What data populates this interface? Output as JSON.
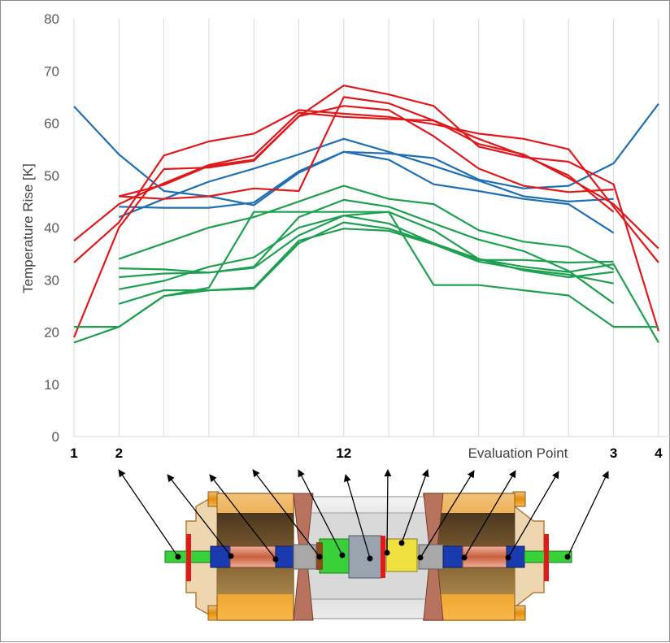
{
  "chart_data": {
    "type": "line",
    "ylabel": "Temperature Rise [K]",
    "xlabel": "Evaluation Point",
    "ylim": [
      0,
      80
    ],
    "y_ticks": [
      0,
      10,
      20,
      30,
      40,
      50,
      60,
      70,
      80
    ],
    "x_count": 15,
    "grid": "vertical",
    "point_labels": [
      {
        "index": 0,
        "label": "1"
      },
      {
        "index": 1,
        "label": "2"
      },
      {
        "index": 6,
        "label": "12"
      },
      {
        "index": 12,
        "label": "3"
      },
      {
        "index": 13,
        "label": "4"
      }
    ],
    "series": [
      {
        "color": "#1f6fb4",
        "values": [
          63.2,
          54,
          47,
          46,
          44.3,
          50.5,
          54.5,
          54.2,
          53.3,
          49.2,
          47.5,
          48,
          52.3,
          63.7
        ]
      },
      {
        "color": "#1f6fb4",
        "values": [
          null,
          44,
          43.8,
          43.8,
          44.8,
          50.8,
          54.5,
          53,
          48.3,
          47,
          45.5,
          44.5,
          39
        ]
      },
      {
        "color": "#1f6fb4",
        "values": [
          null,
          42,
          45.5,
          48.8,
          51.3,
          54,
          57,
          54.5,
          51.8,
          49,
          46,
          45,
          45.5
        ]
      },
      {
        "color": "#e0191c",
        "values": [
          37.5,
          44.5,
          48.5,
          52,
          53.8,
          62,
          61.2,
          60.8,
          60.5,
          56,
          54,
          49.5,
          44.5,
          36
        ]
      },
      {
        "color": "#e0191c",
        "values": [
          33.3,
          41,
          53.8,
          56.5,
          58,
          62.5,
          61.8,
          61.2,
          59.8,
          58,
          57,
          55,
          44,
          33.3
        ]
      },
      {
        "color": "#e0191c",
        "values": [
          19,
          40,
          51.2,
          51.5,
          52.8,
          61.3,
          67.2,
          65.5,
          63.3,
          55.5,
          53.5,
          52.6,
          48.3,
          20.2
        ]
      },
      {
        "color": "#e0191c",
        "values": [
          null,
          46,
          45.5,
          46,
          47.5,
          47,
          65,
          63.8,
          60.5,
          57,
          53.8,
          50,
          43
        ]
      },
      {
        "color": "#e0191c",
        "values": [
          null,
          46,
          48.2,
          51.8,
          53,
          61.3,
          63.3,
          62.5,
          57.5,
          51.3,
          48,
          46.8,
          47.3
        ]
      },
      {
        "color": "#1da050",
        "values": [
          18,
          21,
          26.9,
          28,
          28.3,
          37,
          41,
          39.8,
          37,
          34,
          32.5,
          31.5,
          33,
          18
        ]
      },
      {
        "color": "#1da050",
        "values": [
          21,
          21,
          26.9,
          28.5,
          43,
          43,
          43,
          43,
          29,
          29,
          28,
          27,
          21,
          21
        ]
      },
      {
        "color": "#1da050",
        "values": [
          null,
          34,
          37,
          40,
          42,
          45,
          48,
          45.5,
          44.5,
          39.5,
          37.3,
          36.3,
          32
        ]
      },
      {
        "color": "#1da050",
        "values": [
          null,
          32.2,
          32,
          31.4,
          32.5,
          42,
          45.3,
          44,
          40.8,
          37.7,
          35.5,
          31.7,
          25.5
        ]
      },
      {
        "color": "#1da050",
        "values": [
          null,
          28.2,
          29.8,
          32.5,
          34.3,
          40,
          42.3,
          40.8,
          37,
          33.8,
          33.8,
          33.3,
          33.5
        ]
      },
      {
        "color": "#1da050",
        "values": [
          null,
          25.4,
          28,
          28,
          28.5,
          37.5,
          39.8,
          39.4,
          36.8,
          33.5,
          32,
          31,
          29.3
        ]
      },
      {
        "color": "#1da050",
        "values": [
          null,
          30.5,
          31.2,
          31.4,
          32.3,
          38.5,
          42.3,
          43,
          39.5,
          34,
          31.8,
          30.5,
          31.5
        ]
      }
    ]
  },
  "diagram": {
    "callout_count": 11
  }
}
